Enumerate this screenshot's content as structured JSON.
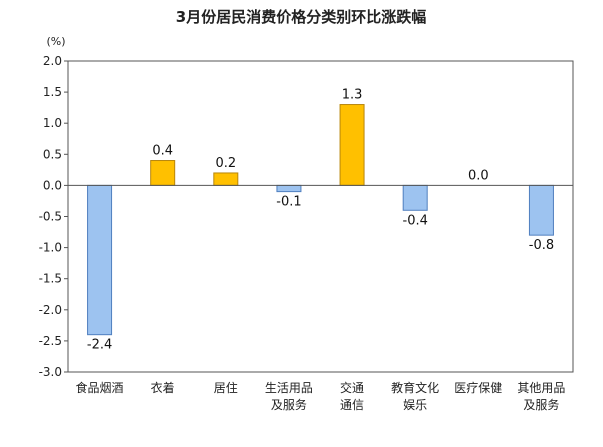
{
  "chart_data": {
    "type": "bar",
    "title": "3月份居民消费价格分类别环比涨跌幅",
    "unit_label": "(%)",
    "xlabel": "",
    "ylabel": "",
    "ylim": [
      -3.0,
      2.0
    ],
    "yticks": [
      "2.0",
      "1.5",
      "1.0",
      "0.5",
      "0.0",
      "-0.5",
      "-1.0",
      "-1.5",
      "-2.0",
      "-2.5",
      "-3.0"
    ],
    "categories": [
      [
        "食品烟酒"
      ],
      [
        "衣着"
      ],
      [
        "居住"
      ],
      [
        "生活用品",
        "及服务"
      ],
      [
        "交通",
        "通信"
      ],
      [
        "教育文化",
        "娱乐"
      ],
      [
        "医疗保健"
      ],
      [
        "其他用品",
        "及服务"
      ]
    ],
    "values": [
      -2.4,
      0.4,
      0.2,
      -0.1,
      1.3,
      -0.4,
      0.0,
      -0.8
    ],
    "value_labels": [
      "-2.4",
      "0.4",
      "0.2",
      "-0.1",
      "1.3",
      "-0.4",
      "0.0",
      "-0.8"
    ],
    "grid": false,
    "colors": {
      "positive": "#FFC000",
      "positive_stroke": "#B8860B",
      "negative": "#9DC3F0",
      "negative_stroke": "#4F7FBF",
      "axis": "#555555"
    }
  }
}
